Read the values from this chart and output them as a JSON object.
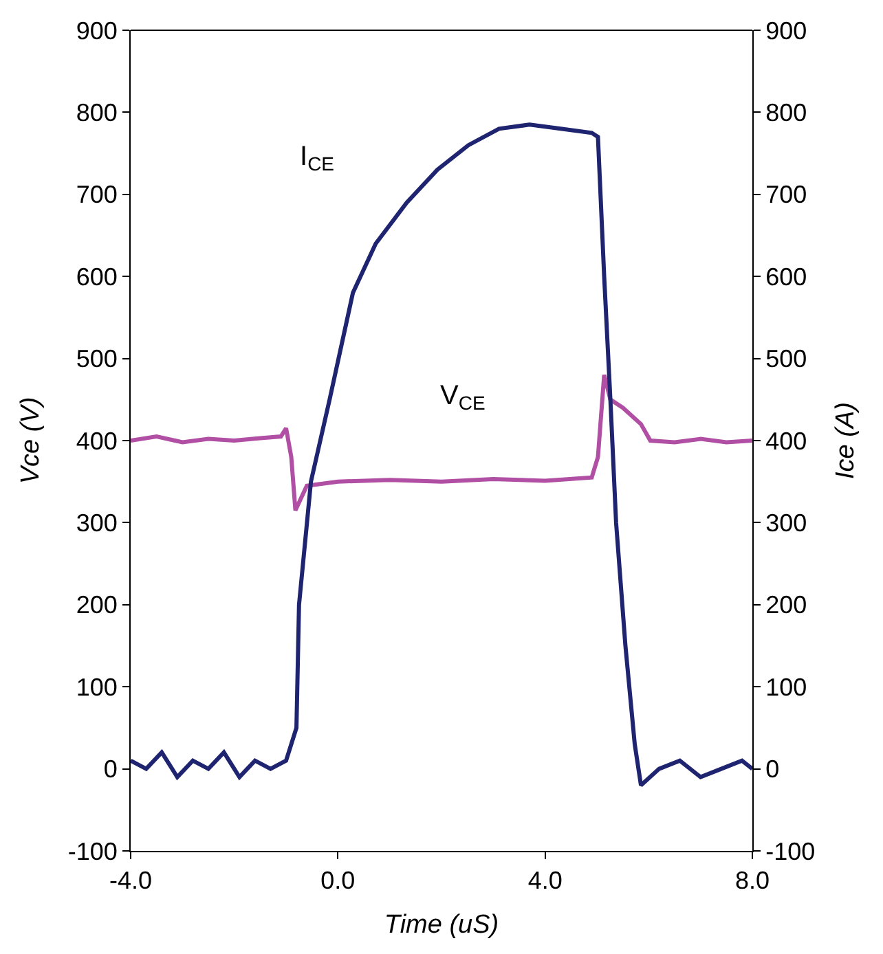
{
  "chart_data": {
    "type": "line",
    "xlabel": "Time (uS)",
    "ylabel": "Vce (V)",
    "y2label": "Ice (A)",
    "xlim": [
      -4,
      8
    ],
    "xticks": [
      {
        "value": -4,
        "label": "-4.0"
      },
      {
        "value": 0,
        "label": "0.0"
      },
      {
        "value": 4,
        "label": "4.0"
      },
      {
        "value": 8,
        "label": "8.0"
      }
    ],
    "ylim": [
      -100,
      900
    ],
    "yticks": [
      -100,
      0,
      100,
      200,
      300,
      400,
      500,
      600,
      700,
      800,
      900
    ],
    "y2lim": [
      -100,
      900
    ],
    "y2ticks": [
      -100,
      0,
      100,
      200,
      300,
      400,
      500,
      600,
      700,
      800,
      900
    ],
    "legend": false,
    "marker": "none",
    "line_style": "solid",
    "series": [
      {
        "color": "#b04fa3",
        "axis": "y",
        "x": [
          -4,
          -3.5,
          -3,
          -2.5,
          -2,
          -1.5,
          -1.1,
          -1.0,
          -0.9,
          -0.82,
          -0.6,
          0,
          1,
          2,
          3,
          4,
          4.9,
          5.02,
          5.14,
          5.26,
          5.5,
          5.85,
          6.03,
          6.5,
          7,
          7.5,
          8
        ],
        "values": [
          400,
          405,
          398,
          402,
          400,
          403,
          405,
          415,
          380,
          315,
          345,
          350,
          352,
          350,
          353,
          351,
          355,
          380,
          480,
          450,
          440,
          420,
          400,
          398,
          402,
          398,
          400
        ]
      },
      {
        "color": "#1f2470",
        "axis": "y2",
        "x": [
          -4,
          -3.7,
          -3.4,
          -3.1,
          -2.8,
          -2.5,
          -2.2,
          -1.9,
          -1.6,
          -1.3,
          -1.0,
          -0.8,
          -0.75,
          -0.52,
          -0.16,
          0.29,
          0.73,
          1.33,
          1.92,
          2.52,
          3.11,
          3.7,
          4.3,
          4.9,
          5.02,
          5.14,
          5.26,
          5.37,
          5.55,
          5.73,
          5.85,
          6.2,
          6.6,
          7,
          7.4,
          7.8,
          8
        ],
        "values": [
          10,
          0,
          20,
          -10,
          10,
          0,
          20,
          -10,
          10,
          0,
          10,
          50,
          200,
          350,
          450,
          580,
          640,
          690,
          730,
          760,
          780,
          785,
          780,
          775,
          770,
          600,
          450,
          300,
          150,
          30,
          -20,
          0,
          10,
          -10,
          0,
          10,
          0
        ]
      }
    ],
    "annotations": [
      {
        "text": "I$_{CE}$",
        "x": -0.4,
        "y": 745
      },
      {
        "text": "V$_{CE}$",
        "x": 2.4,
        "y": 453
      }
    ]
  }
}
